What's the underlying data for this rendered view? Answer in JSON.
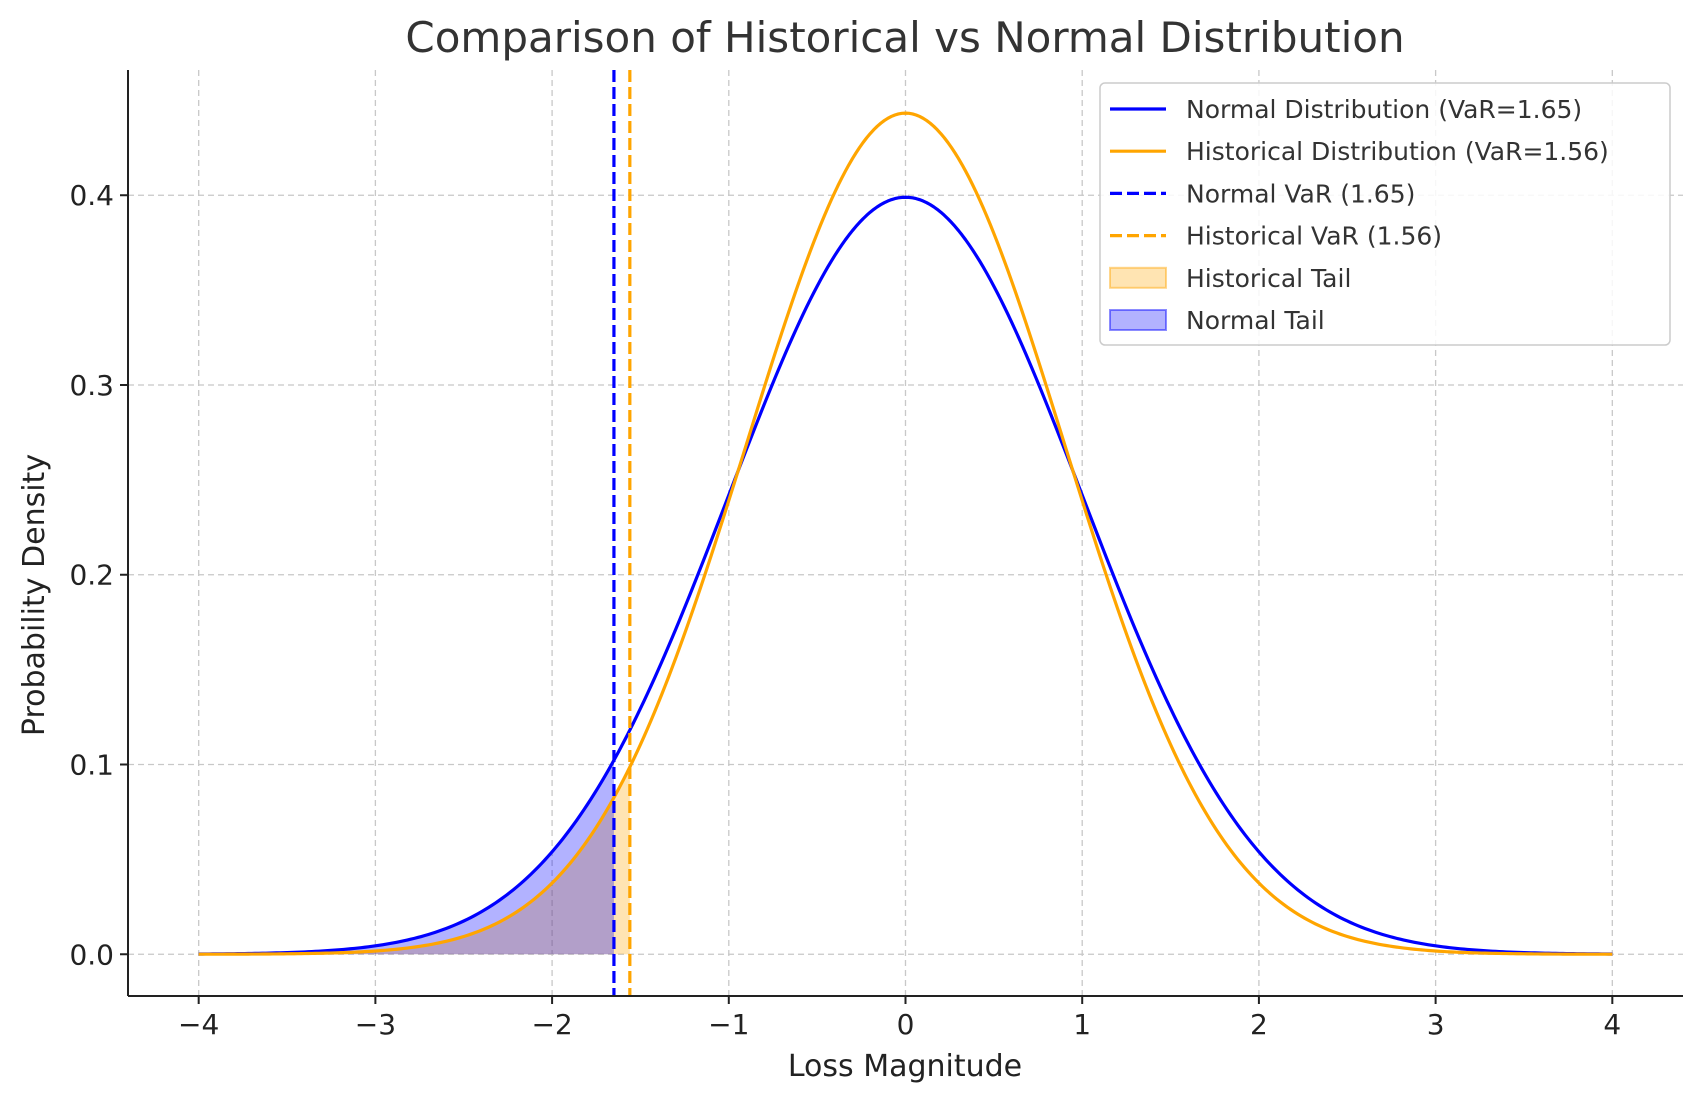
{
  "chart_data": {
    "type": "line",
    "title": "Comparison of Historical vs Normal Distribution",
    "xlabel": "Loss Magnitude",
    "ylabel": "Probability Density",
    "xlim": [
      -4.4,
      4.4
    ],
    "ylim": [
      -0.022,
      0.466
    ],
    "x_ticks": [
      -4,
      -3,
      -2,
      -1,
      0,
      1,
      2,
      3,
      4
    ],
    "x_tick_labels": [
      "−4",
      "−3",
      "−2",
      "−1",
      "0",
      "1",
      "2",
      "3",
      "4"
    ],
    "y_ticks": [
      0.0,
      0.1,
      0.2,
      0.3,
      0.4
    ],
    "y_tick_labels": [
      "0.0",
      "0.1",
      "0.2",
      "0.3",
      "0.4"
    ],
    "grid": true,
    "legend_position": "top-right",
    "series": [
      {
        "name": "Normal Distribution (VaR=1.65)",
        "color": "#0000ff",
        "style": "solid",
        "x": [
          -4,
          -3.5,
          -3,
          -2.5,
          -2,
          -1.75,
          -1.65,
          -1.5,
          -1.25,
          -1,
          -0.75,
          -0.5,
          -0.25,
          0,
          0.25,
          0.5,
          0.75,
          1,
          1.25,
          1.5,
          1.75,
          2,
          2.5,
          3,
          3.5,
          4
        ],
        "y": [
          0.0001,
          0.0009,
          0.0044,
          0.0175,
          0.054,
          0.0863,
          0.1023,
          0.1295,
          0.1826,
          0.242,
          0.3011,
          0.3521,
          0.3867,
          0.3989,
          0.3867,
          0.3521,
          0.3011,
          0.242,
          0.1826,
          0.1295,
          0.0863,
          0.054,
          0.0175,
          0.0044,
          0.0009,
          0.0001
        ]
      },
      {
        "name": "Historical Distribution (VaR=1.56)",
        "color": "#ffa500",
        "style": "solid",
        "x": [
          -4,
          -3.5,
          -3,
          -2.5,
          -2,
          -1.75,
          -1.56,
          -1.5,
          -1.25,
          -1,
          -0.75,
          -0.5,
          -0.25,
          0,
          0.25,
          0.5,
          0.75,
          1,
          1.25,
          1.5,
          1.75,
          2,
          2.5,
          3,
          3.5,
          4
        ],
        "y": [
          0.0,
          0.0002,
          0.0013,
          0.0081,
          0.0367,
          0.0659,
          0.0943,
          0.1035,
          0.1617,
          0.2432,
          0.3117,
          0.3849,
          0.4318,
          0.4433,
          0.4318,
          0.3849,
          0.3117,
          0.2432,
          0.1617,
          0.1035,
          0.0659,
          0.0367,
          0.0081,
          0.0013,
          0.0002,
          0.0
        ]
      }
    ],
    "vlines": [
      {
        "name": "Normal VaR (1.65)",
        "x": -1.65,
        "color": "#0000ff",
        "style": "dashed"
      },
      {
        "name": "Historical VaR (1.56)",
        "x": -1.56,
        "color": "#ffa500",
        "style": "dashed"
      }
    ],
    "fills": [
      {
        "name": "Historical Tail",
        "series_index": 1,
        "x_from": -4,
        "x_to": -1.56,
        "color": "#ffa500",
        "opacity": 0.3
      },
      {
        "name": "Normal Tail",
        "series_index": 0,
        "x_from": -4,
        "x_to": -1.65,
        "color": "#0000ff",
        "opacity": 0.3
      }
    ],
    "legend": [
      {
        "label": "Normal Distribution (VaR=1.65)",
        "kind": "line",
        "color": "#0000ff",
        "style": "solid"
      },
      {
        "label": "Historical Distribution (VaR=1.56)",
        "kind": "line",
        "color": "#ffa500",
        "style": "solid"
      },
      {
        "label": "Normal VaR (1.65)",
        "kind": "line",
        "color": "#0000ff",
        "style": "dashed"
      },
      {
        "label": "Historical VaR (1.56)",
        "kind": "line",
        "color": "#ffa500",
        "style": "dashed"
      },
      {
        "label": "Historical Tail",
        "kind": "patch",
        "color": "#ffa500",
        "opacity": 0.3
      },
      {
        "label": "Normal Tail",
        "kind": "patch",
        "color": "#0000ff",
        "opacity": 0.3
      }
    ]
  }
}
